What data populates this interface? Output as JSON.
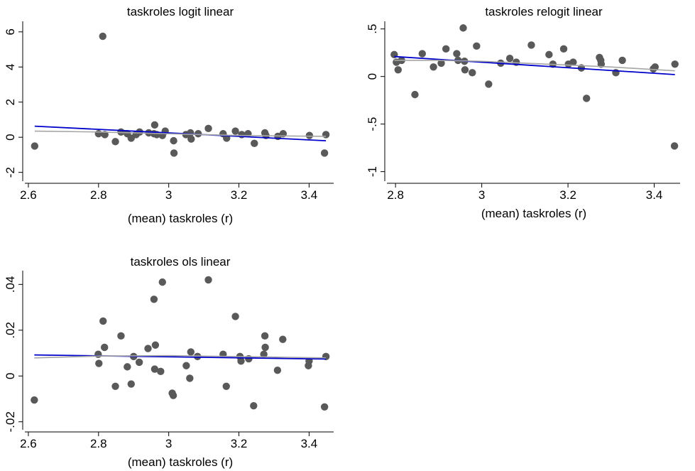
{
  "colors": {
    "points": "#595959",
    "linear_fit": "#0000cc",
    "smooth_fit": "#a6a6a6",
    "axis": "#000000",
    "background": "#ffffff"
  },
  "chart_data": [
    {
      "type": "scatter",
      "title": "taskroles logit linear",
      "xlabel": "(mean) taskroles (r)",
      "ylabel": "",
      "xlim": [
        2.59,
        3.47
      ],
      "ylim": [
        -2.5,
        6.6
      ],
      "xticks": [
        2.6,
        2.8,
        3.0,
        3.2,
        3.4
      ],
      "xtick_labels": [
        "2.6",
        "2.8",
        "3",
        "3.2",
        "3.4"
      ],
      "yticks": [
        -2,
        0,
        2,
        4,
        6
      ],
      "ytick_labels": [
        "-2",
        "0",
        "2",
        "4",
        "6"
      ],
      "grid": false,
      "series": [
        {
          "kind": "points",
          "x": [
            2.618,
            2.8,
            2.812,
            2.818,
            2.848,
            2.864,
            2.882,
            2.893,
            2.907,
            2.917,
            2.943,
            2.958,
            2.96,
            2.966,
            2.982,
            2.99,
            3.014,
            3.015,
            3.049,
            3.062,
            3.064,
            3.084,
            3.113,
            3.155,
            3.165,
            3.19,
            3.208,
            3.226,
            3.244,
            3.274,
            3.277,
            3.311,
            3.326,
            3.401,
            3.444,
            3.448
          ],
          "y": [
            -0.5,
            0.2,
            5.75,
            0.15,
            -0.25,
            0.3,
            0.2,
            -0.05,
            0.15,
            0.3,
            0.25,
            0.2,
            0.7,
            0.15,
            0.1,
            0.35,
            -0.2,
            -0.9,
            0.15,
            0.25,
            -0.1,
            0.2,
            0.5,
            0.2,
            -0.05,
            0.35,
            0.15,
            0.2,
            -0.35,
            0.25,
            0.1,
            0.05,
            0.2,
            0.1,
            -0.9,
            0.15
          ]
        },
        {
          "kind": "line",
          "role": "linear fit",
          "x": [
            2.618,
            3.448
          ],
          "y": [
            0.63,
            -0.2
          ]
        },
        {
          "kind": "line",
          "role": "smooth fit",
          "x": [
            2.618,
            2.8,
            3.0,
            3.2,
            3.448
          ],
          "y": [
            0.35,
            0.3,
            0.2,
            0.1,
            0.05
          ]
        }
      ]
    },
    {
      "type": "scatter",
      "title": "taskroles relogit linear",
      "xlabel": "(mean) taskroles  (r)",
      "ylabel": "",
      "xlim": [
        2.78,
        3.46
      ],
      "ylim": [
        -1.1,
        0.58
      ],
      "xticks": [
        2.8,
        3.0,
        3.2,
        3.4
      ],
      "xtick_labels": [
        "2.8",
        "3",
        "3.2",
        "3.4"
      ],
      "yticks": [
        -1,
        -0.5,
        0,
        0.5
      ],
      "ytick_labels": [
        "-1",
        "-.5",
        "0",
        ".5"
      ],
      "grid": false,
      "series": [
        {
          "kind": "points",
          "x": [
            2.797,
            2.802,
            2.806,
            2.814,
            2.845,
            2.862,
            2.888,
            2.906,
            2.917,
            2.942,
            2.945,
            2.957,
            2.96,
            2.961,
            2.978,
            2.988,
            3.016,
            3.044,
            3.065,
            3.08,
            3.115,
            3.156,
            3.165,
            3.19,
            3.201,
            3.212,
            3.231,
            3.243,
            3.273,
            3.276,
            3.277,
            3.311,
            3.326,
            3.398,
            3.402,
            3.447,
            3.448
          ],
          "y": [
            0.23,
            0.15,
            0.07,
            0.17,
            -0.19,
            0.24,
            0.1,
            0.14,
            0.29,
            0.24,
            0.17,
            0.51,
            0.16,
            0.07,
            0.04,
            0.32,
            -0.08,
            0.14,
            0.19,
            0.15,
            0.33,
            0.23,
            0.13,
            0.29,
            0.13,
            0.15,
            0.09,
            -0.23,
            0.2,
            0.17,
            0.13,
            0.04,
            0.17,
            0.08,
            0.1,
            -0.73,
            0.13
          ]
        },
        {
          "kind": "line",
          "role": "linear fit",
          "x": [
            2.797,
            3.448
          ],
          "y": [
            0.21,
            0.02
          ]
        },
        {
          "kind": "line",
          "role": "smooth fit",
          "x": [
            2.797,
            2.9,
            3.0,
            3.1,
            3.2,
            3.3,
            3.448
          ],
          "y": [
            0.17,
            0.17,
            0.16,
            0.14,
            0.12,
            0.1,
            0.06
          ]
        }
      ]
    },
    {
      "type": "scatter",
      "title": "taskroles ols linear",
      "xlabel": "(mean) taskroles (r)",
      "ylabel": "",
      "xlim": [
        2.59,
        3.47
      ],
      "ylim": [
        -0.0235,
        0.046
      ],
      "xticks": [
        2.6,
        2.8,
        3.0,
        3.2,
        3.4
      ],
      "xtick_labels": [
        "2.6",
        "2.8",
        "3",
        "3.2",
        "3.4"
      ],
      "yticks": [
        -0.02,
        0,
        0.02,
        0.04
      ],
      "ytick_labels": [
        "-.02",
        "0",
        ".02",
        ".04"
      ],
      "grid": false,
      "series": [
        {
          "kind": "points",
          "x": [
            2.617,
            2.799,
            2.801,
            2.813,
            2.817,
            2.848,
            2.864,
            2.882,
            2.893,
            2.9,
            2.916,
            2.941,
            2.958,
            2.96,
            2.962,
            2.977,
            2.982,
            3.01,
            3.013,
            3.05,
            3.06,
            3.063,
            3.082,
            3.113,
            3.155,
            3.164,
            3.19,
            3.203,
            3.206,
            3.228,
            3.242,
            3.271,
            3.274,
            3.275,
            3.31,
            3.325,
            3.398,
            3.4,
            3.444,
            3.448
          ],
          "y": [
            -0.0105,
            0.0095,
            0.0055,
            0.024,
            0.0125,
            -0.0045,
            0.0175,
            0.004,
            -0.0035,
            0.0085,
            0.006,
            0.012,
            0.0335,
            0.003,
            0.0135,
            0.002,
            0.041,
            -0.0075,
            -0.0085,
            0.0045,
            -0.001,
            0.0105,
            0.0085,
            0.042,
            0.0095,
            -0.0045,
            0.026,
            0.0085,
            0.0065,
            0.0075,
            -0.013,
            0.0095,
            0.0175,
            0.0125,
            0.0025,
            0.016,
            0.0045,
            0.0065,
            -0.0135,
            0.0085
          ]
        },
        {
          "kind": "line",
          "role": "linear fit",
          "x": [
            2.617,
            3.448
          ],
          "y": [
            0.0092,
            0.0074
          ]
        },
        {
          "kind": "line",
          "role": "smooth fit",
          "x": [
            2.617,
            2.8,
            3.0,
            3.2,
            3.448
          ],
          "y": [
            0.0079,
            0.0087,
            0.0089,
            0.0085,
            0.0079
          ]
        }
      ]
    }
  ]
}
